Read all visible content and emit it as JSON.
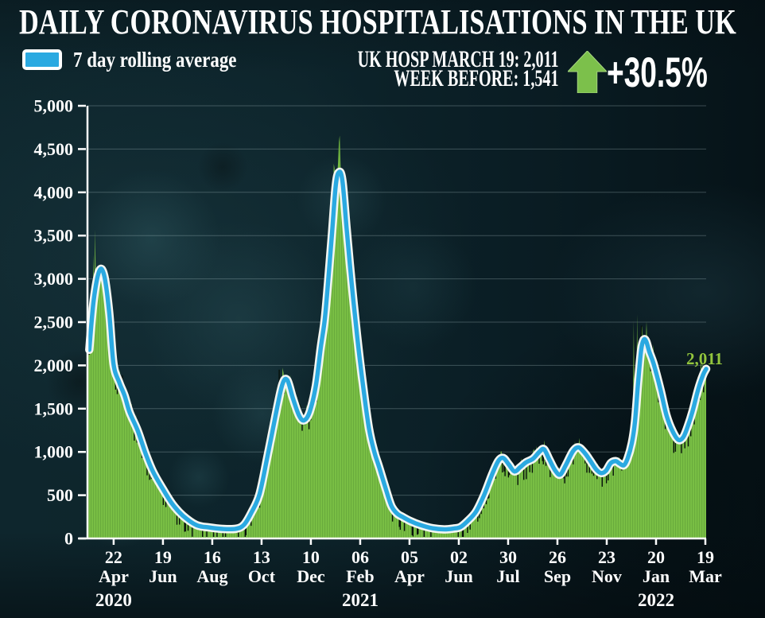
{
  "header": {
    "title": "DAILY CORONAVIRUS HOSPITALISATIONS IN THE UK",
    "legend_label": "7 day rolling average",
    "stat_line1": "UK HOSP MARCH 19: 2,011",
    "stat_line2": "WEEK BEFORE: 1,541",
    "pct_change": "+30.5%",
    "arrow_direction": "up"
  },
  "colors": {
    "background": "#0a2026",
    "green_fill": "#79bf44",
    "green_stripe": "rgba(10,50,15,0.14)",
    "green_label": "#93c63d",
    "blue_line": "#2aa9e1",
    "line_casing": "#f3f6f2",
    "arrow_green": "#7cc04b",
    "arrow_edge": "#a5d57e",
    "grid": "rgba(195,215,220,0.28)",
    "axis": "#ffffff",
    "low_tick_black": "#06100a",
    "text": "#ffffff"
  },
  "chart_data": {
    "type": "area+line",
    "title": "DAILY CORONAVIRUS HOSPITALISATIONS IN THE UK",
    "ylabel": "",
    "xlabel": "",
    "ylim": [
      0,
      5000
    ],
    "ytick_step": 500,
    "grid": true,
    "yticks": [
      {
        "v": 0,
        "label": "0"
      },
      {
        "v": 500,
        "label": "500"
      },
      {
        "v": 1000,
        "label": "1,000"
      },
      {
        "v": 1500,
        "label": "1,500"
      },
      {
        "v": 2000,
        "label": "2,000"
      },
      {
        "v": 2500,
        "label": "2,500"
      },
      {
        "v": 3000,
        "label": "3,000"
      },
      {
        "v": 3500,
        "label": "3,500"
      },
      {
        "v": 4000,
        "label": "4,000"
      },
      {
        "v": 4500,
        "label": "4,500"
      },
      {
        "v": 5000,
        "label": "5,000"
      }
    ],
    "xticks": [
      {
        "f": 0.0423,
        "day": "22",
        "month": "Apr",
        "year": "2020"
      },
      {
        "f": 0.122,
        "day": "19",
        "month": "Jun",
        "year": ""
      },
      {
        "f": 0.2017,
        "day": "16",
        "month": "Aug",
        "year": ""
      },
      {
        "f": 0.2814,
        "day": "13",
        "month": "Oct",
        "year": ""
      },
      {
        "f": 0.3611,
        "day": "10",
        "month": "Dec",
        "year": ""
      },
      {
        "f": 0.4408,
        "day": "06",
        "month": "Feb",
        "year": "2021"
      },
      {
        "f": 0.5205,
        "day": "05",
        "month": "Apr",
        "year": ""
      },
      {
        "f": 0.6002,
        "day": "02",
        "month": "Jun",
        "year": ""
      },
      {
        "f": 0.6799,
        "day": "30",
        "month": "Jul",
        "year": ""
      },
      {
        "f": 0.7596,
        "day": "26",
        "month": "Sep",
        "year": ""
      },
      {
        "f": 0.8393,
        "day": "23",
        "month": "Nov",
        "year": ""
      },
      {
        "f": 0.919,
        "day": "20",
        "month": "Jan",
        "year": "2022"
      },
      {
        "f": 0.9987,
        "day": "19",
        "month": "Mar",
        "year": ""
      }
    ],
    "end_label": "2,011",
    "series": [
      {
        "name": "7 day rolling average",
        "points": [
          [
            0.003,
            2180
          ],
          [
            0.01,
            2750
          ],
          [
            0.019,
            3090
          ],
          [
            0.027,
            3040
          ],
          [
            0.035,
            2620
          ],
          [
            0.042,
            2020
          ],
          [
            0.051,
            1810
          ],
          [
            0.06,
            1650
          ],
          [
            0.068,
            1460
          ],
          [
            0.081,
            1250
          ],
          [
            0.094,
            980
          ],
          [
            0.106,
            770
          ],
          [
            0.122,
            570
          ],
          [
            0.137,
            400
          ],
          [
            0.154,
            265
          ],
          [
            0.176,
            155
          ],
          [
            0.196,
            128
          ],
          [
            0.218,
            110
          ],
          [
            0.24,
            112
          ],
          [
            0.253,
            158
          ],
          [
            0.265,
            300
          ],
          [
            0.278,
            510
          ],
          [
            0.291,
            950
          ],
          [
            0.304,
            1420
          ],
          [
            0.315,
            1780
          ],
          [
            0.323,
            1830
          ],
          [
            0.332,
            1620
          ],
          [
            0.342,
            1420
          ],
          [
            0.35,
            1365
          ],
          [
            0.359,
            1460
          ],
          [
            0.369,
            1760
          ],
          [
            0.377,
            2200
          ],
          [
            0.383,
            2500
          ],
          [
            0.387,
            2800
          ],
          [
            0.395,
            3500
          ],
          [
            0.401,
            4060
          ],
          [
            0.406,
            4230
          ],
          [
            0.412,
            4140
          ],
          [
            0.419,
            3570
          ],
          [
            0.427,
            2950
          ],
          [
            0.436,
            2330
          ],
          [
            0.445,
            1790
          ],
          [
            0.455,
            1270
          ],
          [
            0.464,
            990
          ],
          [
            0.471,
            835
          ],
          [
            0.481,
            600
          ],
          [
            0.491,
            380
          ],
          [
            0.5,
            290
          ],
          [
            0.509,
            250
          ],
          [
            0.522,
            200
          ],
          [
            0.538,
            155
          ],
          [
            0.558,
            118
          ],
          [
            0.577,
            105
          ],
          [
            0.592,
            115
          ],
          [
            0.603,
            132
          ],
          [
            0.615,
            205
          ],
          [
            0.628,
            310
          ],
          [
            0.641,
            500
          ],
          [
            0.654,
            740
          ],
          [
            0.664,
            895
          ],
          [
            0.672,
            930
          ],
          [
            0.681,
            855
          ],
          [
            0.69,
            775
          ],
          [
            0.699,
            820
          ],
          [
            0.709,
            880
          ],
          [
            0.72,
            920
          ],
          [
            0.731,
            1005
          ],
          [
            0.738,
            1030
          ],
          [
            0.747,
            905
          ],
          [
            0.756,
            785
          ],
          [
            0.764,
            738
          ],
          [
            0.773,
            845
          ],
          [
            0.785,
            1010
          ],
          [
            0.794,
            1052
          ],
          [
            0.804,
            985
          ],
          [
            0.813,
            895
          ],
          [
            0.822,
            800
          ],
          [
            0.83,
            756
          ],
          [
            0.838,
            782
          ],
          [
            0.846,
            872
          ],
          [
            0.854,
            893
          ],
          [
            0.86,
            866
          ],
          [
            0.867,
            846
          ],
          [
            0.873,
            925
          ],
          [
            0.88,
            1105
          ],
          [
            0.885,
            1350
          ],
          [
            0.89,
            1800
          ],
          [
            0.895,
            2180
          ],
          [
            0.899,
            2295
          ],
          [
            0.903,
            2280
          ],
          [
            0.908,
            2160
          ],
          [
            0.915,
            2020
          ],
          [
            0.926,
            1725
          ],
          [
            0.936,
            1420
          ],
          [
            0.946,
            1235
          ],
          [
            0.955,
            1140
          ],
          [
            0.963,
            1170
          ],
          [
            0.97,
            1290
          ],
          [
            0.978,
            1470
          ],
          [
            0.987,
            1720
          ],
          [
            0.995,
            1890
          ],
          [
            1.0,
            1960
          ]
        ]
      },
      {
        "name": "daily hospitalisations",
        "derived_from": "7 day rolling average",
        "n_days": 727,
        "noise_amp": 0.06,
        "spikes": [
          [
            7,
            3280
          ],
          [
            9,
            3570
          ],
          [
            16,
            3150
          ],
          [
            225,
            1950
          ],
          [
            230,
            1915
          ],
          [
            289,
            4330
          ],
          [
            295,
            4580
          ],
          [
            641,
            2520
          ],
          [
            645,
            2590
          ],
          [
            650,
            2460
          ],
          [
            720,
            2140
          ],
          [
            726,
            2011
          ]
        ],
        "last_value": 2011
      }
    ]
  }
}
